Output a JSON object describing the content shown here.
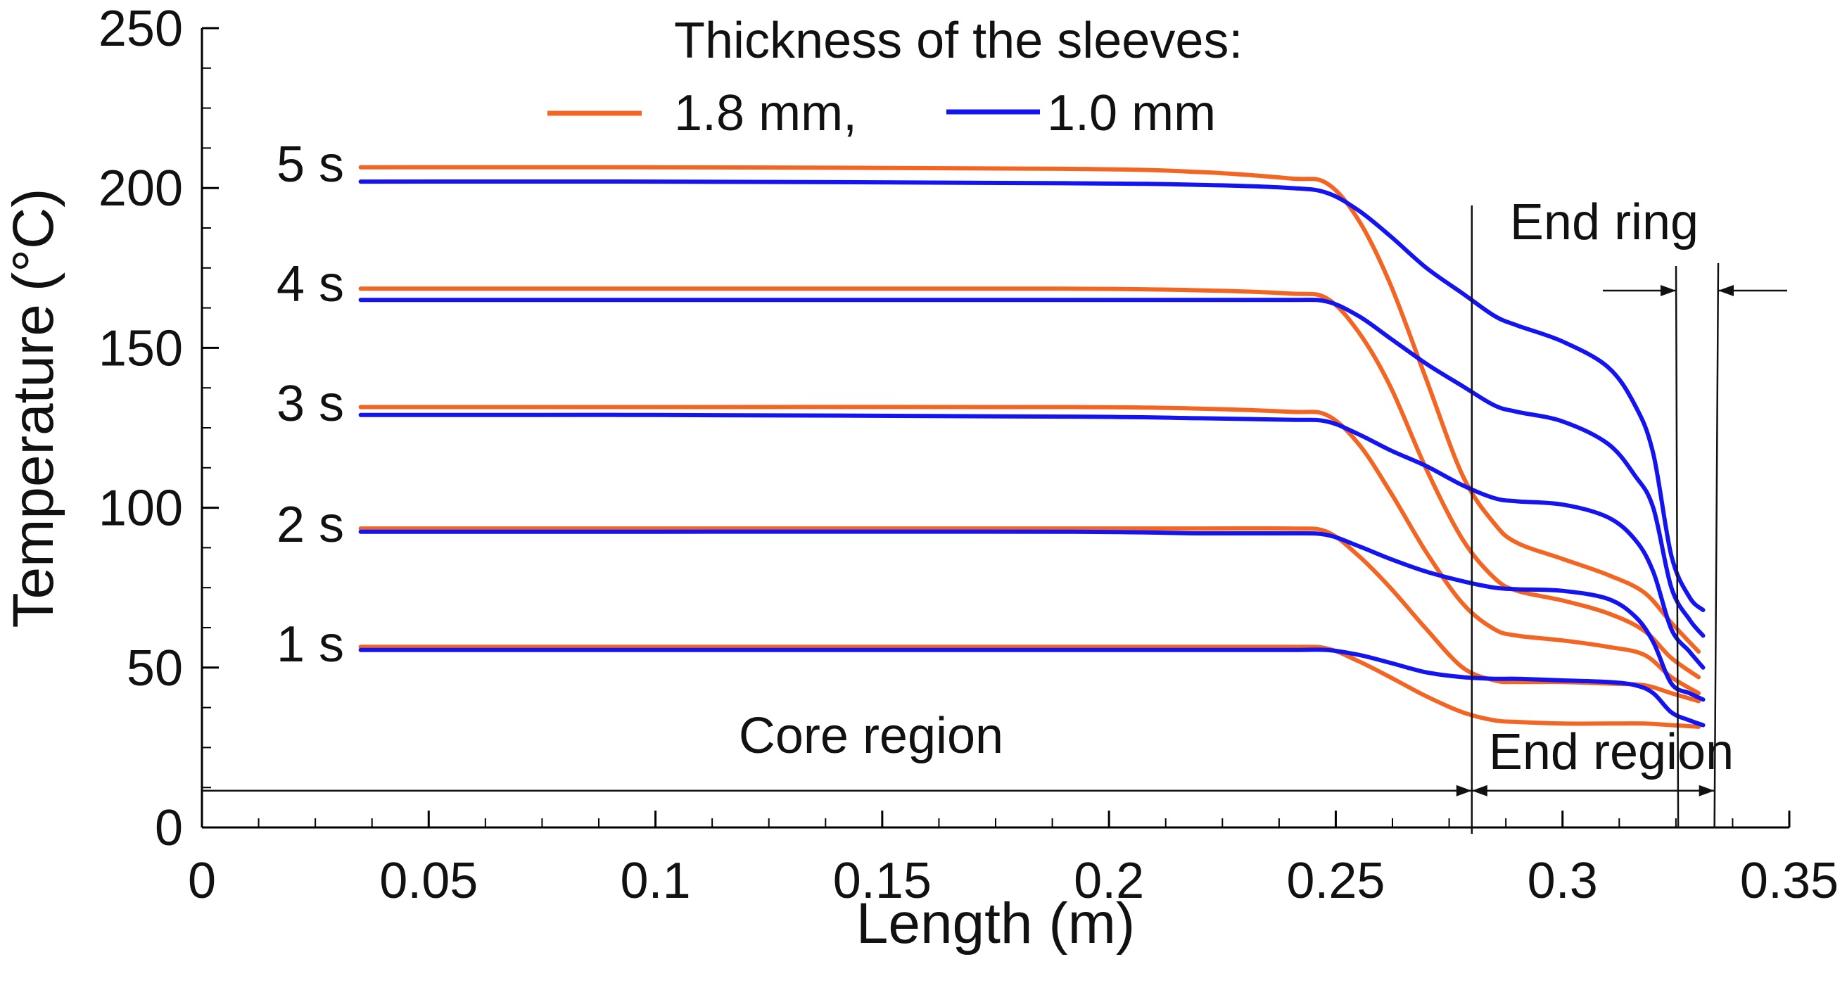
{
  "chart_data": {
    "type": "line",
    "title": "",
    "xlabel": "Length (m)",
    "ylabel": "Temperature",
    "ylabel_unit": "(°C)",
    "xlim": [
      0,
      0.35
    ],
    "ylim": [
      0,
      250
    ],
    "x_ticks": [
      "0",
      "0.05",
      "0.1",
      "0.15",
      "0.2",
      "0.25",
      "0.3",
      "0.35"
    ],
    "y_ticks": [
      "0",
      "50",
      "100",
      "150",
      "200",
      "250"
    ],
    "legend": {
      "title": "Thickness of the sleeves:",
      "placement": "top-center",
      "entries": [
        {
          "label": "1.8 mm,",
          "color": "#f26522"
        },
        {
          "label": "1.0 mm",
          "color": "#1414f0"
        }
      ]
    },
    "time_labels": [
      "5 s",
      "4 s",
      "3 s",
      "2 s",
      "1 s"
    ],
    "annotations": {
      "core_region": "Core region",
      "end_region": "End region",
      "end_ring": "End ring"
    },
    "markers": {
      "core_end_x": 0.28,
      "end_ring_start_x": 0.3255,
      "end_ring_end_x": 0.3335,
      "core_line_y": 11.5
    },
    "series": [
      {
        "name": "1.8 mm",
        "time": "5 s",
        "color": "#f26522",
        "x": [
          0.035,
          0.1,
          0.19,
          0.22,
          0.24,
          0.248,
          0.255,
          0.262,
          0.27,
          0.278,
          0.285,
          0.29,
          0.3,
          0.31,
          0.318,
          0.324,
          0.33
        ],
        "y": [
          206.5,
          206.5,
          206,
          205,
          203,
          201.5,
          190,
          170,
          140,
          110,
          95,
          89,
          84,
          79,
          73.5,
          64,
          55
        ]
      },
      {
        "name": "1.0 mm",
        "time": "5 s",
        "color": "#1414f0",
        "x": [
          0.035,
          0.1,
          0.19,
          0.22,
          0.24,
          0.248,
          0.255,
          0.262,
          0.27,
          0.278,
          0.285,
          0.29,
          0.3,
          0.31,
          0.316,
          0.32,
          0.324,
          0.328,
          0.331
        ],
        "y": [
          202,
          202,
          201.5,
          201,
          200,
          198.5,
          193,
          185,
          175,
          167,
          160,
          157,
          152,
          144,
          132,
          117,
          85,
          72,
          68
        ]
      },
      {
        "name": "1.8 mm",
        "time": "4 s",
        "color": "#f26522",
        "x": [
          0.035,
          0.1,
          0.19,
          0.22,
          0.24,
          0.248,
          0.255,
          0.262,
          0.27,
          0.278,
          0.285,
          0.29,
          0.3,
          0.31,
          0.318,
          0.324,
          0.33
        ],
        "y": [
          168.5,
          168.5,
          168.5,
          168,
          167,
          165.5,
          155,
          138,
          112,
          90,
          78,
          74,
          71,
          67,
          61.5,
          53,
          47
        ]
      },
      {
        "name": "1.0 mm",
        "time": "4 s",
        "color": "#1414f0",
        "x": [
          0.035,
          0.1,
          0.19,
          0.22,
          0.24,
          0.248,
          0.255,
          0.262,
          0.27,
          0.278,
          0.285,
          0.29,
          0.3,
          0.31,
          0.316,
          0.32,
          0.324,
          0.328,
          0.331
        ],
        "y": [
          165,
          165,
          165,
          165,
          165,
          164.5,
          160,
          153,
          145,
          138,
          132,
          130,
          127,
          120,
          110,
          100,
          75,
          65,
          60
        ]
      },
      {
        "name": "1.8 mm",
        "time": "3 s",
        "color": "#f26522",
        "x": [
          0.035,
          0.1,
          0.19,
          0.22,
          0.24,
          0.248,
          0.255,
          0.262,
          0.27,
          0.278,
          0.285,
          0.29,
          0.3,
          0.31,
          0.318,
          0.324,
          0.33
        ],
        "y": [
          131.5,
          131.5,
          131.5,
          131,
          130,
          129,
          120,
          105,
          86,
          70,
          62,
          60,
          58.5,
          56.5,
          54,
          47,
          42
        ]
      },
      {
        "name": "1.0 mm",
        "time": "3 s",
        "color": "#1414f0",
        "x": [
          0.035,
          0.1,
          0.19,
          0.22,
          0.24,
          0.248,
          0.255,
          0.262,
          0.27,
          0.278,
          0.285,
          0.29,
          0.3,
          0.31,
          0.316,
          0.32,
          0.324,
          0.328,
          0.331
        ],
        "y": [
          129,
          129,
          128.5,
          128,
          127.5,
          127,
          123,
          118,
          113,
          107,
          103,
          102,
          101,
          97,
          90,
          80,
          62,
          55,
          50
        ]
      },
      {
        "name": "1.8 mm",
        "time": "2 s",
        "color": "#f26522",
        "x": [
          0.035,
          0.1,
          0.19,
          0.22,
          0.24,
          0.248,
          0.255,
          0.262,
          0.27,
          0.278,
          0.285,
          0.29,
          0.3,
          0.31,
          0.318,
          0.324,
          0.33
        ],
        "y": [
          93.5,
          93.5,
          93.5,
          93.5,
          93.5,
          92.5,
          85,
          75,
          62,
          50,
          46,
          45.5,
          45.5,
          45,
          44.5,
          42,
          39.5
        ]
      },
      {
        "name": "1.0 mm",
        "time": "2 s",
        "color": "#1414f0",
        "x": [
          0.035,
          0.1,
          0.19,
          0.22,
          0.24,
          0.248,
          0.255,
          0.262,
          0.27,
          0.278,
          0.285,
          0.29,
          0.3,
          0.31,
          0.316,
          0.32,
          0.324,
          0.328,
          0.331
        ],
        "y": [
          92.5,
          92.5,
          92.5,
          92,
          92,
          91.5,
          88,
          84,
          80,
          77,
          75,
          74.5,
          74,
          71.5,
          66,
          58,
          45,
          42,
          40
        ]
      },
      {
        "name": "1.8 mm",
        "time": "1 s",
        "color": "#f26522",
        "x": [
          0.035,
          0.1,
          0.19,
          0.22,
          0.24,
          0.248,
          0.255,
          0.262,
          0.27,
          0.278,
          0.285,
          0.29,
          0.3,
          0.31,
          0.318,
          0.324,
          0.33
        ],
        "y": [
          56.5,
          56.5,
          56.5,
          56.5,
          56.5,
          56,
          52,
          47,
          41,
          36,
          33.5,
          33,
          32.5,
          32.5,
          32.5,
          32,
          31.5
        ]
      },
      {
        "name": "1.0 mm",
        "time": "1 s",
        "color": "#1414f0",
        "x": [
          0.035,
          0.1,
          0.19,
          0.22,
          0.24,
          0.248,
          0.255,
          0.262,
          0.27,
          0.278,
          0.285,
          0.29,
          0.3,
          0.31,
          0.316,
          0.32,
          0.324,
          0.328,
          0.331
        ],
        "y": [
          55.5,
          55.5,
          55.5,
          55.5,
          55.5,
          55.5,
          54,
          51.5,
          48.5,
          47,
          46.5,
          46.5,
          46,
          45.5,
          44.5,
          42,
          36,
          33.5,
          32
        ]
      }
    ]
  }
}
